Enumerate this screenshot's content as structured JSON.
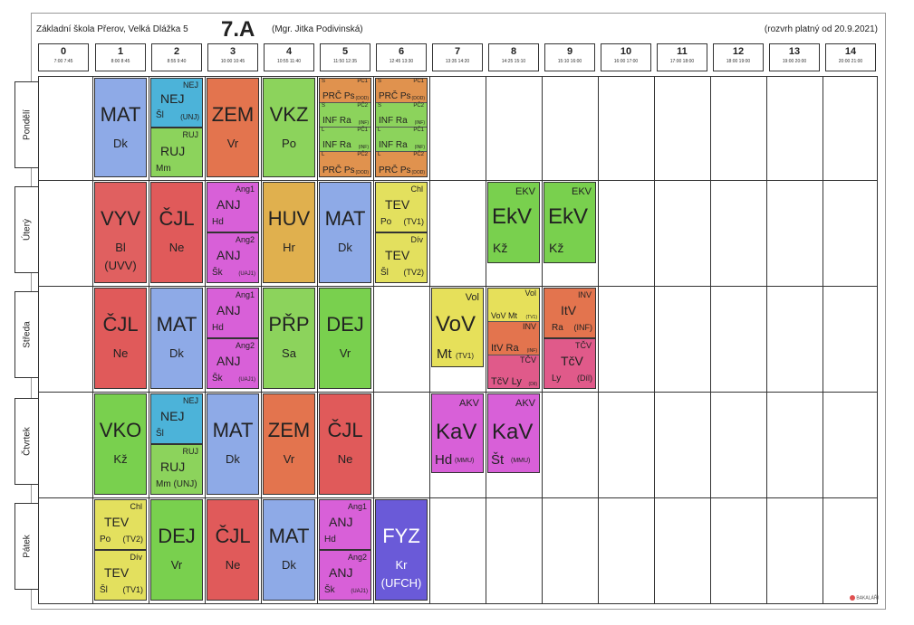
{
  "header": {
    "school": "Základní škola Přerov, Velká Dlážka 5",
    "class": "7.A",
    "teacher": "(Mgr. Jitka Podivinská)",
    "valid": "(rozvrh platný od 20.9.2021)"
  },
  "periods": [
    {
      "num": "0",
      "time": "7:00 7:45"
    },
    {
      "num": "1",
      "time": "8:00 8:45"
    },
    {
      "num": "2",
      "time": "8:55 9:40"
    },
    {
      "num": "3",
      "time": "10:00 10:45"
    },
    {
      "num": "4",
      "time": "10:55 11:40"
    },
    {
      "num": "5",
      "time": "11:50 12:35"
    },
    {
      "num": "6",
      "time": "12:45 13:30"
    },
    {
      "num": "7",
      "time": "13:35 14:20"
    },
    {
      "num": "8",
      "time": "14:25 15:10"
    },
    {
      "num": "9",
      "time": "15:10 16:00"
    },
    {
      "num": "10",
      "time": "16:00 17:00"
    },
    {
      "num": "11",
      "time": "17:00 18:00"
    },
    {
      "num": "12",
      "time": "18:00 19:00"
    },
    {
      "num": "13",
      "time": "19:00 20:00"
    },
    {
      "num": "14",
      "time": "20:00 21:00"
    }
  ],
  "days": [
    "Pondělí",
    "Úterý",
    "Středa",
    "Čtvrtek",
    "Pátek"
  ],
  "lessons": {
    "mon": {
      "mat": {
        "subj": "MAT",
        "tch": "Dk"
      },
      "nej": {
        "grp": "NEJ",
        "subj": "NEJ",
        "tch": "Šl",
        "room": "(UNJ)"
      },
      "ruj": {
        "grp": "RUJ",
        "subj": "RUJ",
        "tch": "Mm"
      },
      "zem": {
        "subj": "ZEM",
        "tch": "Vr"
      },
      "vkz": {
        "subj": "VKZ",
        "tch": "Po"
      },
      "p5": [
        {
          "g1": "S",
          "g2": "PČ1",
          "t": "PRČ Ps",
          "r": "(DOD)"
        },
        {
          "g1": "S",
          "g2": "PČ2",
          "t": "INF Ra",
          "r": "(INF)"
        },
        {
          "g1": "L",
          "g2": "PČ1",
          "t": "INF Ra",
          "r": "(INF)"
        },
        {
          "g1": "L",
          "g2": "PČ2",
          "t": "PRČ Ps",
          "r": "(DOD)"
        }
      ],
      "p6": [
        {
          "g1": "S",
          "g2": "PČ1",
          "t": "PRČ Ps",
          "r": "(DOD)"
        },
        {
          "g1": "S",
          "g2": "PČ2",
          "t": "INF Ra",
          "r": "(INF)"
        },
        {
          "g1": "L",
          "g2": "PČ1",
          "t": "INF Ra",
          "r": "(INF)"
        },
        {
          "g1": "L",
          "g2": "PČ2",
          "t": "PRČ Ps",
          "r": "(DOD)"
        }
      ]
    },
    "tue": {
      "vyv": {
        "subj": "VYV",
        "tch": "Bl",
        "room": "(UVV)"
      },
      "cjl": {
        "subj": "ČJL",
        "tch": "Ne"
      },
      "anj1": {
        "grp": "Ang1",
        "subj": "ANJ",
        "tch": "Hd"
      },
      "anj2": {
        "grp": "Ang2",
        "subj": "ANJ",
        "tch": "Šk",
        "room": "(UAJ1)"
      },
      "huv": {
        "subj": "HUV",
        "tch": "Hr"
      },
      "mat": {
        "subj": "MAT",
        "tch": "Dk"
      },
      "tev1": {
        "grp": "Chl",
        "subj": "TEV",
        "tch": "Po",
        "room": "(TV1)"
      },
      "tev2": {
        "grp": "Dív",
        "subj": "TEV",
        "tch": "Šl",
        "room": "(TV2)"
      },
      "ekv1": {
        "grp": "EKV",
        "subj": "EkV",
        "tch": "Kž"
      },
      "ekv2": {
        "grp": "EKV",
        "subj": "EkV",
        "tch": "Kž"
      }
    },
    "wed": {
      "cjl": {
        "subj": "ČJL",
        "tch": "Ne"
      },
      "mat": {
        "subj": "MAT",
        "tch": "Dk"
      },
      "anj1": {
        "grp": "Ang1",
        "subj": "ANJ",
        "tch": "Hd"
      },
      "anj2": {
        "grp": "Ang2",
        "subj": "ANJ",
        "tch": "Šk",
        "room": "(UAJ1)"
      },
      "prp": {
        "subj": "PŘP",
        "tch": "Sa"
      },
      "dej": {
        "subj": "DEJ",
        "tch": "Vr"
      },
      "vov": {
        "grp": "Vol",
        "subj": "VoV",
        "tch": "Mt",
        "room": "(TV1)"
      },
      "p8a": {
        "grp": "Vol",
        "txt": "VoV Mt",
        "room": "(TV1)"
      },
      "p8b": {
        "grp": "INV",
        "txt": "ItV Ra",
        "room": "(INF)"
      },
      "p8c": {
        "grp": "TČV",
        "txt": "TčV Ly",
        "room": "(Díl)"
      },
      "itv": {
        "grp": "INV",
        "subj": "ItV",
        "tch": "Ra",
        "room": "(INF)"
      },
      "tcv": {
        "grp": "TČV",
        "subj": "TčV",
        "tch": "Ly",
        "room": "(Díl)"
      }
    },
    "thu": {
      "vko": {
        "subj": "VKO",
        "tch": "Kž"
      },
      "nej": {
        "grp": "NEJ",
        "subj": "NEJ",
        "tch": "Šl"
      },
      "ruj": {
        "grp": "RUJ",
        "subj": "RUJ",
        "tch": "Mm (UNJ)"
      },
      "mat": {
        "subj": "MAT",
        "tch": "Dk"
      },
      "zem": {
        "subj": "ZEM",
        "tch": "Vr"
      },
      "cjl": {
        "subj": "ČJL",
        "tch": "Ne"
      },
      "kav1": {
        "grp": "AKV",
        "subj": "KaV",
        "tch": "Hd",
        "room": "(MMU)"
      },
      "kav2": {
        "grp": "AKV",
        "subj": "KaV",
        "tch": "Št",
        "room": "(MMU)"
      }
    },
    "fri": {
      "tev1": {
        "grp": "Chl",
        "subj": "TEV",
        "tch": "Po",
        "room": "(TV2)"
      },
      "tev2": {
        "grp": "Dív",
        "subj": "TEV",
        "tch": "Šl",
        "room": "(TV1)"
      },
      "dej": {
        "subj": "DEJ",
        "tch": "Vr"
      },
      "cjl": {
        "subj": "ČJL",
        "tch": "Ne"
      },
      "mat": {
        "subj": "MAT",
        "tch": "Dk"
      },
      "anj1": {
        "grp": "Ang1",
        "subj": "ANJ",
        "tch": "Hd"
      },
      "anj2": {
        "grp": "Ang2",
        "subj": "ANJ",
        "tch": "Šk",
        "room": "(UAJ1)"
      },
      "fyz": {
        "subj": "FYZ",
        "tch": "Kr",
        "room": "(UFCH)"
      }
    }
  },
  "footer": {
    "logo": "BAKALÁŘI"
  }
}
